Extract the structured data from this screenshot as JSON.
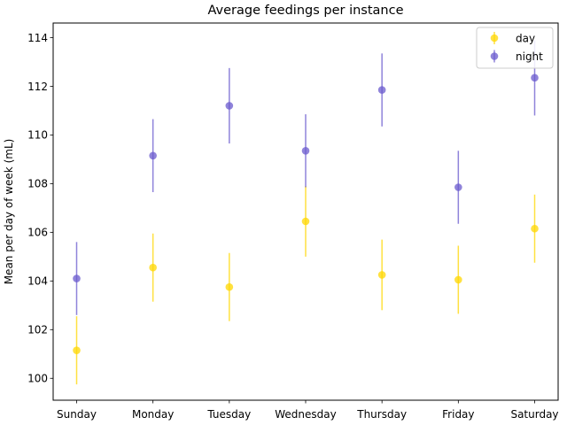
{
  "chart_data": {
    "type": "scatter",
    "title": "Average feedings per instance",
    "xlabel": "",
    "ylabel": "Mean per day of week (mL)",
    "categories": [
      "Sunday",
      "Monday",
      "Tuesday",
      "Wednesday",
      "Thursday",
      "Friday",
      "Saturday"
    ],
    "ylim": [
      99.1,
      114.6
    ],
    "yticks": [
      100,
      102,
      104,
      106,
      108,
      110,
      112,
      114
    ],
    "grid": false,
    "legend_position": "top-right",
    "series": [
      {
        "name": "day",
        "color": "#ffd700",
        "values": [
          101.15,
          104.55,
          103.75,
          106.45,
          104.25,
          104.05,
          106.15
        ],
        "errors": [
          1.4,
          1.4,
          1.4,
          1.45,
          1.45,
          1.4,
          1.4
        ]
      },
      {
        "name": "night",
        "color": "#6a5acd",
        "values": [
          104.1,
          109.15,
          111.2,
          109.35,
          111.85,
          107.85,
          112.35
        ],
        "errors": [
          1.5,
          1.5,
          1.55,
          1.5,
          1.5,
          1.5,
          1.55
        ]
      }
    ]
  }
}
